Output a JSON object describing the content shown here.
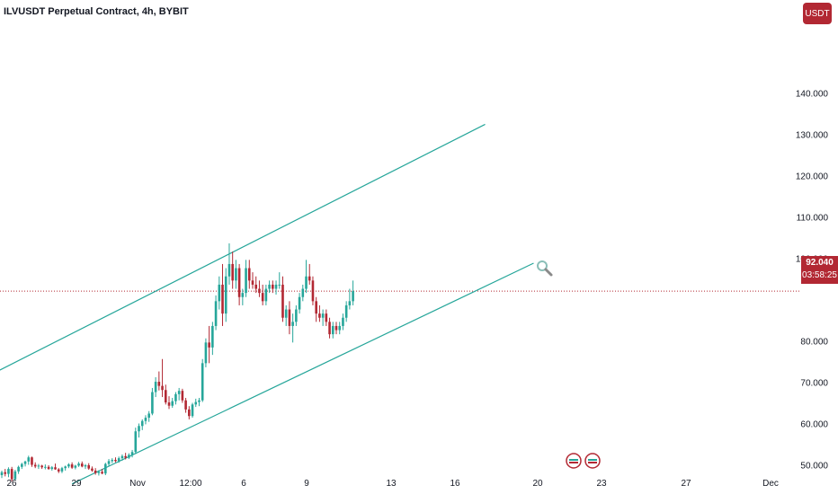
{
  "header": {
    "title": "ILVUSDT Perpetual Contract, 4h, BYBIT",
    "currency_label": "USDT"
  },
  "price_tag": {
    "price": "92.040",
    "countdown": "03:58:25"
  },
  "colors": {
    "up": "#26a69a",
    "down": "#b22833",
    "trendline": "#26a69a"
  },
  "chart_data": {
    "type": "candlestick",
    "ylim": [
      40,
      155
    ],
    "yticks": [
      {
        "value": 140,
        "label": "140.000"
      },
      {
        "value": 130,
        "label": "130.000"
      },
      {
        "value": 120,
        "label": "120.000"
      },
      {
        "value": 110,
        "label": "110.000"
      },
      {
        "value": 100,
        "label": "100.000"
      },
      {
        "value": 80,
        "label": "80.000"
      },
      {
        "value": 70,
        "label": "70.000"
      },
      {
        "value": 60,
        "label": "60.000"
      },
      {
        "value": 50,
        "label": "50.000"
      }
    ],
    "xticks": [
      "26",
      "29",
      "Nov",
      "12:00",
      "6",
      "9",
      "13",
      "16",
      "20",
      "23",
      "27",
      "Dec"
    ],
    "last_price": 92.04,
    "candles": [
      [
        47.5,
        48.6,
        46.8,
        48.2
      ],
      [
        48.2,
        49.0,
        47.2,
        47.8
      ],
      [
        47.8,
        49.4,
        47.0,
        49.0
      ],
      [
        49.0,
        49.5,
        46.0,
        46.5
      ],
      [
        46.5,
        48.8,
        46.2,
        48.4
      ],
      [
        48.4,
        49.8,
        47.8,
        49.5
      ],
      [
        49.5,
        50.5,
        49.0,
        50.2
      ],
      [
        50.2,
        51.0,
        49.6,
        50.8
      ],
      [
        50.8,
        52.2,
        50.0,
        51.8
      ],
      [
        51.8,
        52.0,
        49.5,
        50.0
      ],
      [
        50.0,
        50.6,
        49.2,
        49.6
      ],
      [
        49.6,
        50.2,
        49.0,
        49.8
      ],
      [
        49.8,
        50.0,
        49.0,
        49.4
      ],
      [
        49.4,
        50.1,
        48.9,
        49.5
      ],
      [
        49.5,
        49.9,
        48.8,
        49.0
      ],
      [
        49.0,
        49.7,
        48.6,
        49.4
      ],
      [
        49.4,
        50.3,
        48.8,
        48.9
      ],
      [
        48.9,
        49.2,
        48.0,
        48.4
      ],
      [
        48.4,
        49.5,
        48.0,
        49.2
      ],
      [
        49.2,
        49.8,
        48.6,
        49.6
      ],
      [
        49.6,
        50.4,
        49.2,
        50.1
      ],
      [
        50.1,
        50.6,
        49.0,
        49.3
      ],
      [
        49.3,
        50.0,
        48.9,
        49.8
      ],
      [
        49.8,
        50.7,
        49.5,
        50.3
      ],
      [
        50.3,
        50.8,
        49.4,
        49.6
      ],
      [
        49.6,
        50.2,
        49.0,
        49.9
      ],
      [
        49.9,
        50.4,
        48.8,
        49.1
      ],
      [
        49.1,
        49.6,
        48.3,
        48.6
      ],
      [
        48.6,
        49.2,
        47.6,
        48.0
      ],
      [
        48.0,
        48.7,
        47.4,
        48.3
      ],
      [
        48.3,
        49.0,
        47.7,
        47.9
      ],
      [
        47.9,
        50.5,
        47.5,
        50.2
      ],
      [
        50.2,
        51.4,
        49.6,
        50.9
      ],
      [
        50.9,
        51.6,
        50.4,
        51.2
      ],
      [
        51.2,
        51.8,
        50.6,
        50.9
      ],
      [
        50.9,
        52.0,
        50.5,
        51.6
      ],
      [
        51.6,
        52.5,
        51.0,
        52.1
      ],
      [
        52.1,
        52.9,
        51.3,
        51.7
      ],
      [
        51.7,
        52.8,
        51.4,
        52.4
      ],
      [
        52.4,
        53.6,
        51.8,
        53.1
      ],
      [
        53.1,
        59.0,
        52.6,
        58.1
      ],
      [
        58.1,
        60.0,
        56.6,
        59.4
      ],
      [
        59.4,
        61.0,
        58.4,
        60.6
      ],
      [
        60.6,
        62.0,
        59.8,
        61.4
      ],
      [
        61.4,
        63.0,
        60.4,
        62.4
      ],
      [
        62.4,
        68.6,
        62.0,
        67.6
      ],
      [
        67.6,
        71.2,
        66.4,
        70.1
      ],
      [
        70.1,
        72.6,
        68.0,
        69.1
      ],
      [
        69.1,
        75.6,
        66.4,
        68.1
      ],
      [
        68.1,
        69.4,
        64.6,
        65.1
      ],
      [
        65.1,
        66.6,
        63.5,
        64.3
      ],
      [
        64.3,
        66.2,
        63.8,
        65.4
      ],
      [
        65.4,
        67.6,
        64.6,
        67.1
      ],
      [
        67.1,
        68.6,
        65.6,
        67.9
      ],
      [
        67.9,
        68.4,
        65.0,
        65.6
      ],
      [
        65.6,
        66.2,
        62.6,
        63.4
      ],
      [
        63.4,
        64.2,
        61.0,
        61.8
      ],
      [
        61.8,
        65.0,
        61.4,
        64.6
      ],
      [
        64.6,
        66.0,
        64.0,
        65.2
      ],
      [
        65.2,
        66.2,
        64.2,
        65.6
      ],
      [
        65.6,
        75.6,
        65.2,
        74.6
      ],
      [
        74.6,
        80.6,
        73.6,
        79.6
      ],
      [
        79.6,
        83.6,
        74.6,
        78.4
      ],
      [
        78.4,
        84.6,
        76.6,
        83.6
      ],
      [
        83.6,
        91.0,
        82.6,
        89.6
      ],
      [
        89.6,
        95.6,
        87.6,
        93.6
      ],
      [
        93.6,
        98.6,
        83.6,
        86.6
      ],
      [
        86.6,
        97.6,
        84.6,
        95.6
      ],
      [
        95.6,
        103.6,
        93.6,
        98.6
      ],
      [
        98.6,
        101.6,
        92.6,
        94.6
      ],
      [
        94.6,
        99.6,
        92.6,
        97.6
      ],
      [
        97.6,
        98.6,
        88.6,
        90.6
      ],
      [
        90.6,
        92.6,
        88.6,
        91.6
      ],
      [
        91.6,
        99.6,
        90.6,
        97.6
      ],
      [
        97.6,
        99.6,
        92.6,
        94.6
      ],
      [
        94.6,
        96.6,
        92.6,
        93.6
      ],
      [
        93.6,
        95.6,
        91.6,
        92.6
      ],
      [
        92.6,
        94.6,
        90.6,
        91.6
      ],
      [
        91.6,
        93.6,
        88.6,
        89.6
      ],
      [
        89.6,
        93.6,
        88.6,
        92.6
      ],
      [
        92.6,
        94.6,
        91.6,
        93.6
      ],
      [
        93.6,
        94.6,
        91.6,
        92.6
      ],
      [
        92.6,
        94.6,
        91.2,
        93.6
      ],
      [
        93.6,
        96.6,
        92.6,
        93.6
      ],
      [
        93.6,
        95.6,
        84.6,
        85.6
      ],
      [
        85.6,
        88.6,
        83.6,
        87.6
      ],
      [
        87.6,
        89.6,
        81.6,
        83.6
      ],
      [
        83.6,
        86.6,
        79.6,
        84.6
      ],
      [
        84.6,
        88.6,
        83.6,
        87.6
      ],
      [
        87.6,
        91.6,
        86.6,
        90.6
      ],
      [
        90.6,
        93.6,
        89.6,
        92.6
      ],
      [
        92.6,
        99.6,
        91.6,
        95.6
      ],
      [
        95.6,
        98.6,
        93.6,
        94.6
      ],
      [
        94.6,
        95.6,
        88.6,
        89.6
      ],
      [
        89.6,
        90.6,
        84.6,
        86.6
      ],
      [
        86.6,
        88.6,
        84.6,
        85.6
      ],
      [
        85.6,
        87.6,
        83.6,
        86.6
      ],
      [
        86.6,
        87.6,
        83.6,
        84.6
      ],
      [
        84.6,
        85.6,
        80.6,
        81.6
      ],
      [
        81.6,
        84.6,
        80.6,
        83.6
      ],
      [
        83.6,
        84.6,
        81.6,
        82.6
      ],
      [
        82.6,
        84.6,
        81.6,
        83.6
      ],
      [
        83.6,
        86.6,
        82.6,
        85.6
      ],
      [
        85.6,
        89.6,
        84.6,
        88.6
      ],
      [
        88.6,
        92.6,
        87.6,
        89.6
      ],
      [
        89.6,
        94.6,
        88.6,
        92.04
      ]
    ],
    "trendlines": [
      {
        "name": "upper-channel-line",
        "from": {
          "candle": -18,
          "price": 65.8
        },
        "to": {
          "candle": 144.5,
          "price": 132.4
        }
      },
      {
        "name": "lower-channel-line",
        "from": {
          "candle": 21,
          "price": 45.4
        },
        "to": {
          "candle": 159,
          "price": 98.8
        }
      }
    ]
  }
}
